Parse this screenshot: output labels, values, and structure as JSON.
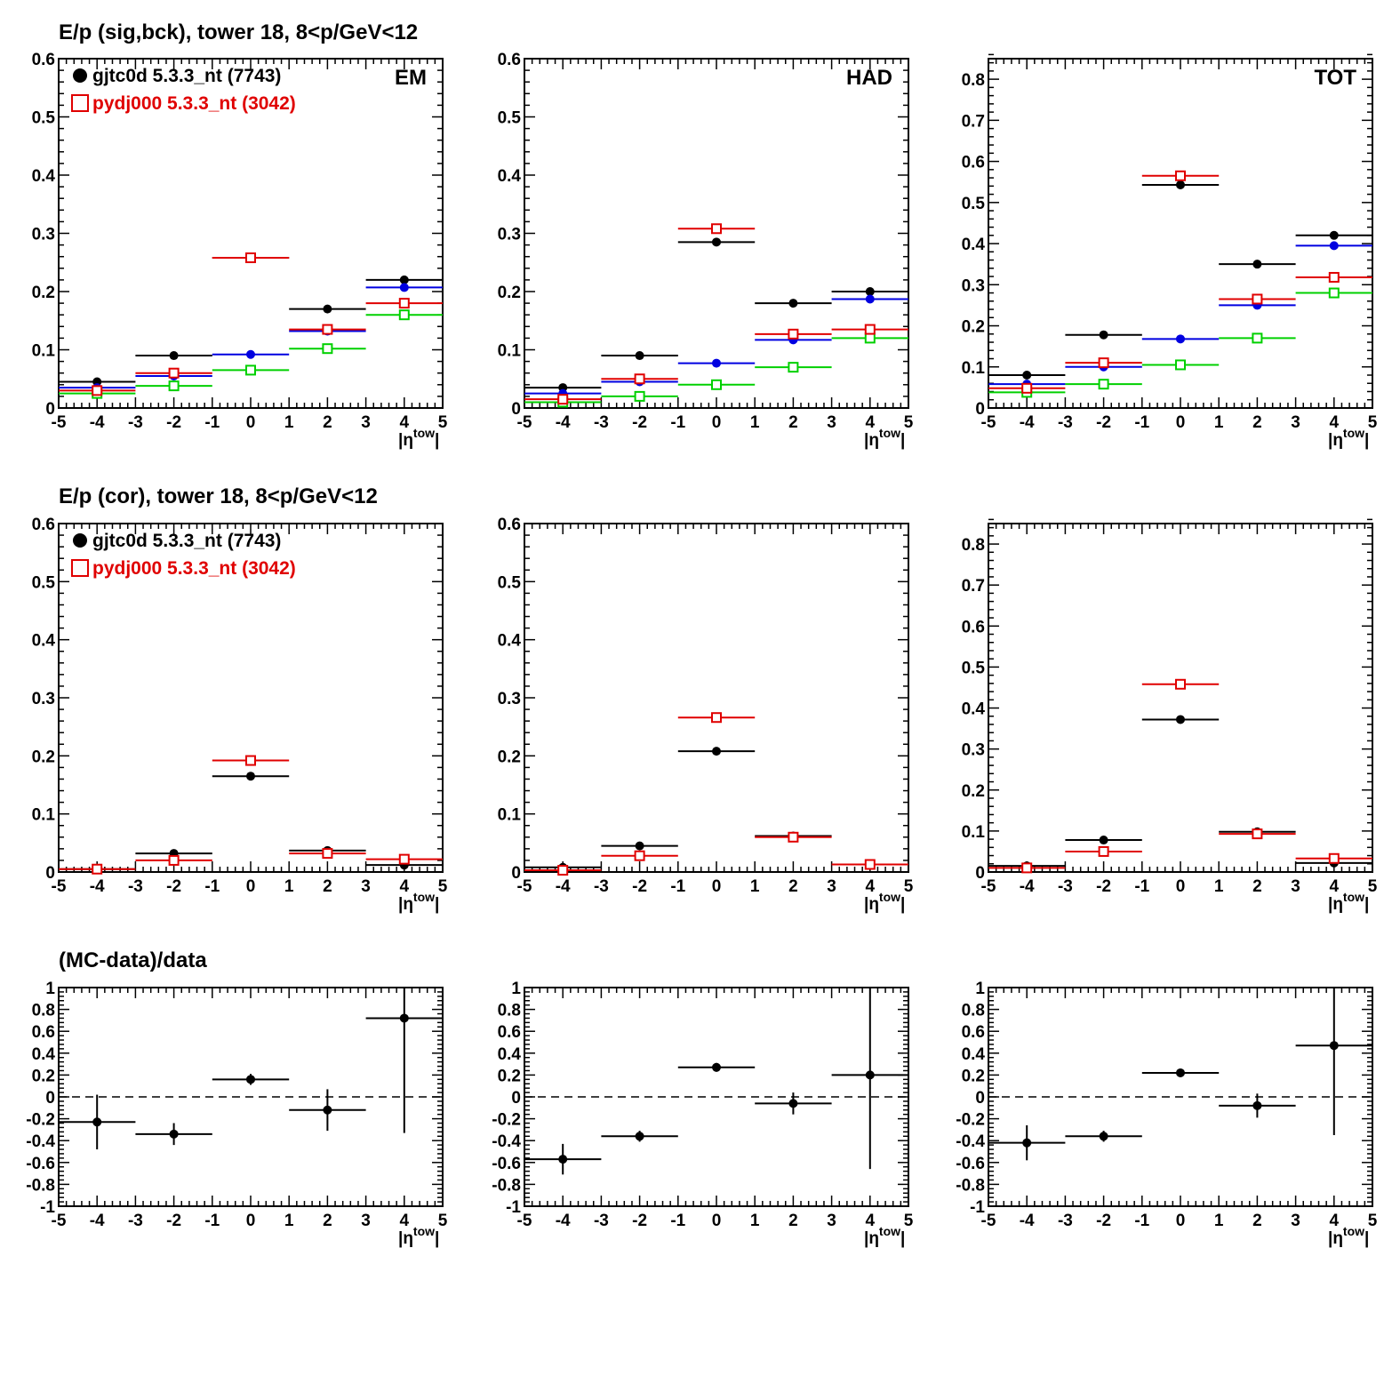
{
  "colors": {
    "data": "#000000",
    "mc": "#e00000",
    "blue": "#0000e0",
    "green": "#00d000"
  },
  "row_titles": [
    "E/p (sig,bck), tower 18,  8<p/GeV<12",
    "E/p (cor), tower 18,  8<p/GeV<12",
    "(MC-data)/data"
  ],
  "legend": {
    "data_label": "gjtc0d 5.3.3_nt (7743)",
    "mc_label": "pydj000 5.3.3_nt (3042)"
  },
  "panel_labels": [
    "EM",
    "HAD",
    "TOT"
  ],
  "x_axis": {
    "label": "|η",
    "label_sup": "tow",
    "label_end": "|",
    "ticks": [
      "-5",
      "-4",
      "-3",
      "-2",
      "-1",
      "0",
      "1",
      "2",
      "3",
      "4",
      "5"
    ]
  },
  "chart_data": [
    {
      "type": "scatter",
      "row": 0,
      "col": 0,
      "label": "EM",
      "xlim": [
        -5,
        5
      ],
      "ylim": [
        0,
        0.6
      ],
      "bin_half_width": 1,
      "x": [
        -4,
        -2,
        0,
        2,
        4
      ],
      "series": [
        {
          "color": "#000000",
          "marker": "filled",
          "values": [
            0.045,
            0.09,
            0.258,
            0.17,
            0.22
          ]
        },
        {
          "color": "#0000e0",
          "marker": "filled",
          "values": [
            0.035,
            0.055,
            0.092,
            0.132,
            0.207
          ]
        },
        {
          "color": "#00d000",
          "marker": "open",
          "values": [
            0.025,
            0.038,
            0.065,
            0.102,
            0.16
          ]
        },
        {
          "color": "#e00000",
          "marker": "open",
          "values": [
            0.03,
            0.06,
            0.258,
            0.135,
            0.18
          ]
        }
      ]
    },
    {
      "type": "scatter",
      "row": 0,
      "col": 1,
      "label": "HAD",
      "xlim": [
        -5,
        5
      ],
      "ylim": [
        0,
        0.6
      ],
      "bin_half_width": 1,
      "x": [
        -4,
        -2,
        0,
        2,
        4
      ],
      "series": [
        {
          "color": "#000000",
          "marker": "filled",
          "values": [
            0.035,
            0.09,
            0.285,
            0.18,
            0.2
          ]
        },
        {
          "color": "#0000e0",
          "marker": "filled",
          "values": [
            0.025,
            0.045,
            0.077,
            0.117,
            0.187
          ]
        },
        {
          "color": "#00d000",
          "marker": "open",
          "values": [
            0.01,
            0.02,
            0.04,
            0.07,
            0.12
          ]
        },
        {
          "color": "#e00000",
          "marker": "open",
          "values": [
            0.015,
            0.05,
            0.308,
            0.127,
            0.135
          ]
        }
      ]
    },
    {
      "type": "scatter",
      "row": 0,
      "col": 2,
      "label": "TOT",
      "xlim": [
        -5,
        5
      ],
      "ylim": [
        0,
        0.85
      ],
      "bin_half_width": 1,
      "x": [
        -4,
        -2,
        0,
        2,
        4
      ],
      "series": [
        {
          "color": "#000000",
          "marker": "filled",
          "values": [
            0.08,
            0.178,
            0.543,
            0.35,
            0.42
          ]
        },
        {
          "color": "#0000e0",
          "marker": "filled",
          "values": [
            0.058,
            0.1,
            0.168,
            0.25,
            0.395
          ]
        },
        {
          "color": "#00d000",
          "marker": "open",
          "values": [
            0.038,
            0.058,
            0.105,
            0.17,
            0.28
          ]
        },
        {
          "color": "#e00000",
          "marker": "open",
          "values": [
            0.048,
            0.11,
            0.565,
            0.265,
            0.318
          ]
        }
      ]
    },
    {
      "type": "scatter",
      "row": 1,
      "col": 0,
      "xlim": [
        -5,
        5
      ],
      "ylim": [
        0,
        0.6
      ],
      "bin_half_width": 1,
      "x": [
        -4,
        -2,
        0,
        2,
        4
      ],
      "series": [
        {
          "color": "#000000",
          "marker": "filled",
          "values": [
            0.005,
            0.032,
            0.165,
            0.037,
            0.012
          ]
        },
        {
          "color": "#e00000",
          "marker": "open",
          "values": [
            0.005,
            0.02,
            0.192,
            0.032,
            0.022
          ]
        }
      ]
    },
    {
      "type": "scatter",
      "row": 1,
      "col": 1,
      "xlim": [
        -5,
        5
      ],
      "ylim": [
        0,
        0.6
      ],
      "bin_half_width": 1,
      "x": [
        -4,
        -2,
        0,
        2,
        4
      ],
      "series": [
        {
          "color": "#000000",
          "marker": "filled",
          "values": [
            0.008,
            0.045,
            0.208,
            0.062,
            0.013
          ]
        },
        {
          "color": "#e00000",
          "marker": "open",
          "values": [
            0.003,
            0.028,
            0.266,
            0.06,
            0.013
          ]
        }
      ]
    },
    {
      "type": "scatter",
      "row": 1,
      "col": 2,
      "xlim": [
        -5,
        5
      ],
      "ylim": [
        0,
        0.85
      ],
      "bin_half_width": 1,
      "x": [
        -4,
        -2,
        0,
        2,
        4
      ],
      "series": [
        {
          "color": "#000000",
          "marker": "filled",
          "values": [
            0.015,
            0.078,
            0.372,
            0.098,
            0.022
          ]
        },
        {
          "color": "#e00000",
          "marker": "open",
          "values": [
            0.01,
            0.05,
            0.458,
            0.093,
            0.033
          ]
        }
      ]
    },
    {
      "type": "scatter",
      "row": 2,
      "col": 0,
      "xlim": [
        -5,
        5
      ],
      "ylim": [
        -1,
        1
      ],
      "bin_half_width": 1,
      "reference_line": 0,
      "x": [
        -4,
        -2,
        0,
        2,
        4
      ],
      "series": [
        {
          "color": "#000000",
          "marker": "filled",
          "values": [
            -0.23,
            -0.34,
            0.16,
            -0.12,
            0.72
          ],
          "errors": [
            0.25,
            0.1,
            0.05,
            0.19,
            1.05
          ]
        }
      ]
    },
    {
      "type": "scatter",
      "row": 2,
      "col": 1,
      "xlim": [
        -5,
        5
      ],
      "ylim": [
        -1,
        1
      ],
      "bin_half_width": 1,
      "reference_line": 0,
      "x": [
        -4,
        -2,
        0,
        2,
        4
      ],
      "series": [
        {
          "color": "#000000",
          "marker": "filled",
          "values": [
            -0.57,
            -0.36,
            0.27,
            -0.06,
            0.2
          ],
          "errors": [
            0.14,
            0.05,
            0.04,
            0.1,
            0.86
          ]
        }
      ]
    },
    {
      "type": "scatter",
      "row": 2,
      "col": 2,
      "xlim": [
        -5,
        5
      ],
      "ylim": [
        -1,
        1
      ],
      "bin_half_width": 1,
      "reference_line": 0,
      "x": [
        -4,
        -2,
        0,
        2,
        4
      ],
      "series": [
        {
          "color": "#000000",
          "marker": "filled",
          "values": [
            -0.42,
            -0.36,
            0.22,
            -0.08,
            0.47
          ],
          "errors": [
            0.16,
            0.05,
            0.03,
            0.11,
            0.82
          ]
        }
      ]
    }
  ],
  "y_ticks": {
    "standard": [
      "0",
      "0.1",
      "0.2",
      "0.3",
      "0.4",
      "0.5",
      "0.6"
    ],
    "tot": [
      "0",
      "0.1",
      "0.2",
      "0.3",
      "0.4",
      "0.5",
      "0.6",
      "0.7",
      "0.8"
    ],
    "ratio": [
      "-1",
      "-0.8",
      "-0.6",
      "-0.4",
      "-0.2",
      "0",
      "0.2",
      "0.4",
      "0.6",
      "0.8",
      "1"
    ]
  }
}
